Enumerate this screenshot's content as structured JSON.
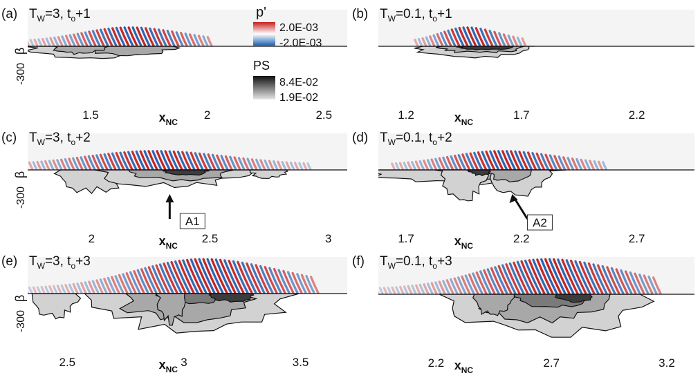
{
  "chart_data": [
    {
      "type": "heatmap",
      "label": "(a)",
      "title": "T",
      "title_sub": "W",
      "title_mid": "=3, t",
      "title_sub2": "o",
      "title_end": "+1",
      "ylabel": "β",
      "ytick": "-300",
      "xticks": [
        "1.5",
        "2",
        "2.5"
      ],
      "xtick_values": [
        1.5,
        2,
        2.5
      ],
      "xlim": [
        1.23,
        2.6
      ],
      "wave": {
        "start": 1.2,
        "end": 2.05,
        "peak": 1.7
      },
      "streak_blobs": [
        [
          1.5,
          0.35,
          0.22,
          1
        ],
        [
          1.66,
          0.25,
          0.16,
          2
        ],
        [
          1.45,
          0.14,
          0.14,
          2
        ]
      ]
    },
    {
      "type": "heatmap",
      "label": "(b)",
      "title": "T",
      "title_sub": "W",
      "title_mid": "=0.1, t",
      "title_sub2": "o",
      "title_end": "+1",
      "ylabel": "",
      "ytick": "",
      "xticks": [
        "1.2",
        "1.7",
        "2.2"
      ],
      "xtick_values": [
        1.2,
        1.7,
        2.2
      ],
      "xlim": [
        1.08,
        2.45
      ],
      "wave": {
        "start": 1.25,
        "end": 1.75,
        "peak": 1.5
      },
      "streak_blobs": [
        [
          1.5,
          0.32,
          0.2,
          1
        ],
        [
          1.52,
          0.24,
          0.12,
          2
        ],
        [
          1.54,
          0.14,
          0.07,
          4
        ]
      ]
    },
    {
      "type": "heatmap",
      "label": "(c)",
      "title": "T",
      "title_sub": "W",
      "title_mid": "=3, t",
      "title_sub2": "o",
      "title_end": "+2",
      "ylabel": "β",
      "ytick": "-300",
      "xticks": [
        "2",
        "2.5",
        "3"
      ],
      "xtick_values": [
        2,
        2.5,
        3
      ],
      "xlim": [
        1.73,
        3.08
      ],
      "wave": {
        "start": 1.75,
        "end": 2.95,
        "peak": 2.3
      },
      "streak_blobs": [
        [
          2.0,
          0.2,
          0.4,
          1
        ],
        [
          2.35,
          0.4,
          0.3,
          1
        ],
        [
          2.38,
          0.25,
          0.2,
          2
        ],
        [
          2.4,
          0.12,
          0.1,
          4
        ],
        [
          2.75,
          0.1,
          0.15,
          1
        ]
      ],
      "annotation": "A1",
      "annotation_x": 2.33
    },
    {
      "type": "heatmap",
      "label": "(d)",
      "title": "T",
      "title_sub": "W",
      "title_mid": "=0.1, t",
      "title_sub2": "o",
      "title_end": "+2",
      "ylabel": "",
      "ytick": "",
      "xticks": [
        "1.7",
        "2.2",
        "2.7"
      ],
      "xtick_values": [
        1.7,
        2.2,
        2.7
      ],
      "xlim": [
        1.58,
        2.95
      ],
      "wave": {
        "start": 1.65,
        "end": 2.6,
        "peak": 2.15
      },
      "streak_blobs": [
        [
          1.95,
          0.5,
          0.25,
          1
        ],
        [
          2.1,
          0.3,
          0.2,
          2
        ],
        [
          2.2,
          0.18,
          0.45,
          1
        ],
        [
          2.15,
          0.12,
          0.2,
          2
        ],
        [
          1.95,
          0.12,
          0.55,
          1
        ],
        [
          2.02,
          0.06,
          0.1,
          4
        ]
      ],
      "annotation": "A2",
      "annotation_x": 2.16
    },
    {
      "type": "heatmap",
      "label": "(e)",
      "title": "T",
      "title_sub": "W",
      "title_mid": "=3, t",
      "title_sub2": "o",
      "title_end": "+3",
      "ylabel": "β",
      "ytick": "-300",
      "xticks": [
        "2.5",
        "3",
        "3.5"
      ],
      "xtick_values": [
        2.5,
        3,
        3.5
      ],
      "xlim": [
        2.33,
        3.7
      ],
      "wave": {
        "start": 2.33,
        "end": 3.6,
        "peak": 3.15
      },
      "streak_blobs": [
        [
          2.45,
          0.12,
          0.45,
          1
        ],
        [
          3.05,
          0.55,
          0.7,
          1
        ],
        [
          3.0,
          0.35,
          0.5,
          2
        ],
        [
          3.05,
          0.2,
          0.2,
          3
        ],
        [
          3.2,
          0.12,
          0.15,
          4
        ],
        [
          2.95,
          0.08,
          0.55,
          2
        ]
      ]
    },
    {
      "type": "heatmap",
      "label": "(f)",
      "title": "T",
      "title_sub": "W",
      "title_mid": "=0.1, t",
      "title_sub2": "o",
      "title_end": "+3",
      "ylabel": "",
      "ytick": "",
      "xticks": [
        "2.2",
        "2.7",
        "3.2"
      ],
      "xtick_values": [
        2.2,
        2.7,
        3.2
      ],
      "xlim": [
        1.95,
        3.32
      ],
      "wave": {
        "start": 1.95,
        "end": 3.2,
        "peak": 2.75
      },
      "streak_blobs": [
        [
          2.7,
          0.55,
          0.75,
          1
        ],
        [
          2.65,
          0.35,
          0.5,
          2
        ],
        [
          2.7,
          0.2,
          0.25,
          3
        ],
        [
          2.8,
          0.1,
          0.15,
          4
        ],
        [
          2.45,
          0.12,
          0.4,
          2
        ]
      ]
    }
  ],
  "legend_p": {
    "title": "p'",
    "max": "2.0E-03",
    "min": "-2.0E-03",
    "colors": [
      "#c81e1e",
      "#ffffff",
      "#1e5fb4"
    ]
  },
  "legend_ps": {
    "title": "PS",
    "max": "8.4E-02",
    "min": "1.9E-02",
    "colors": [
      "#111111",
      "#e6e6e6"
    ]
  },
  "xlabel": "x",
  "xlabel_sub": "NC"
}
